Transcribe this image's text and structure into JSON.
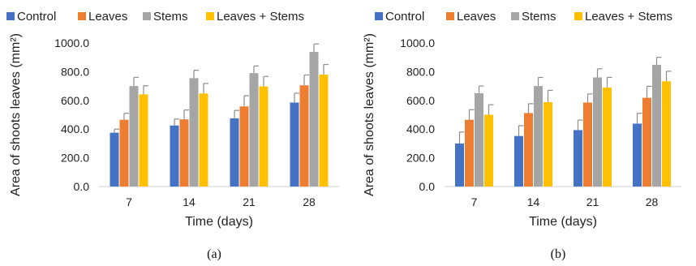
{
  "chart_data": [
    {
      "type": "bar",
      "panel_label": "(a)",
      "categories": [
        "7",
        "14",
        "21",
        "28"
      ],
      "xlabel": "Time (days)",
      "ylabel": "Area of shoots leaves (mm²)",
      "ylim": [
        0,
        1000
      ],
      "yticks": [
        "0.0",
        "200.0",
        "400.0",
        "600.0",
        "800.0",
        "1000.0"
      ],
      "legend_position": "top",
      "grid": false,
      "series": [
        {
          "name": "Control",
          "color": "#4472C4",
          "values": [
            375,
            425,
            475,
            585
          ],
          "errors": [
            25,
            45,
            55,
            65
          ]
        },
        {
          "name": "Leaves",
          "color": "#ED7D31",
          "values": [
            465,
            468,
            558,
            705
          ],
          "errors": [
            45,
            65,
            75,
            72
          ]
        },
        {
          "name": "Stems",
          "color": "#A5A5A5",
          "values": [
            700,
            755,
            790,
            938
          ],
          "errors": [
            60,
            55,
            50,
            55
          ]
        },
        {
          "name": "Leaves + Stems",
          "color": "#FFC000",
          "values": [
            642,
            648,
            697,
            780
          ],
          "errors": [
            60,
            70,
            70,
            70
          ]
        }
      ]
    },
    {
      "type": "bar",
      "panel_label": "(b)",
      "categories": [
        "7",
        "14",
        "21",
        "28"
      ],
      "xlabel": "Time (days)",
      "ylabel": "Area of shoots leaves (mm²)",
      "ylim": [
        0,
        1000
      ],
      "yticks": [
        "0.0",
        "200.0",
        "400.0",
        "600.0",
        "800.0",
        "1000.0"
      ],
      "legend_position": "top",
      "grid": false,
      "series": [
        {
          "name": "Control",
          "color": "#4472C4",
          "values": [
            300,
            352,
            393,
            438
          ],
          "errors": [
            80,
            72,
            70,
            72
          ]
        },
        {
          "name": "Leaves",
          "color": "#ED7D31",
          "values": [
            465,
            512,
            585,
            618
          ],
          "errors": [
            70,
            65,
            60,
            80
          ]
        },
        {
          "name": "Stems",
          "color": "#A5A5A5",
          "values": [
            650,
            700,
            760,
            848
          ],
          "errors": [
            50,
            60,
            60,
            52
          ]
        },
        {
          "name": "Leaves + Stems",
          "color": "#FFC000",
          "values": [
            500,
            588,
            690,
            733
          ],
          "errors": [
            70,
            82,
            70,
            70
          ]
        }
      ]
    }
  ]
}
